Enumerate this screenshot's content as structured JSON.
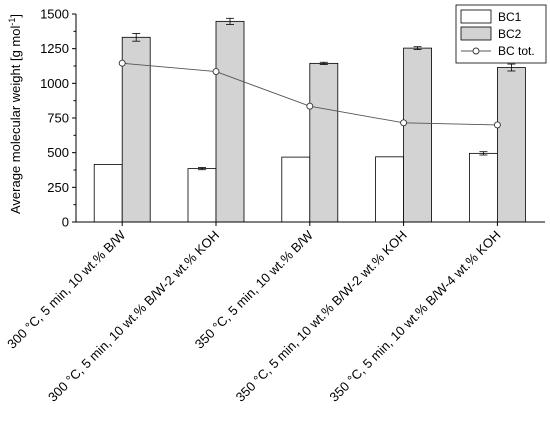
{
  "chart_data": {
    "type": "bar",
    "ylabel": "Average molecular weight [g mol",
    "ylabel_sup": "-1",
    "ylabel_close": "]",
    "ylim": [
      0,
      1500
    ],
    "yticks": [
      0,
      250,
      500,
      750,
      1000,
      1250,
      1500
    ],
    "grid": false,
    "legend_position": "top-right",
    "categories": [
      "300 °C, 5 min, 10 wt.% B/W",
      "300 °C, 5 min, 10 wt.% B/W-2 wt.% KOH",
      "350 °C, 5 min, 10 wt.% B/W",
      "350 °C, 5 min, 10 wt.% B/W-2 wt.% KOH",
      "350 °C, 5 min, 10 wt.% B/W-4 wt.% KOH"
    ],
    "series": [
      {
        "name": "BC1",
        "kind": "bar",
        "color": "#ffffff",
        "values": [
          415,
          385,
          468,
          470,
          495
        ],
        "errors": [
          0,
          8,
          0,
          0,
          12
        ]
      },
      {
        "name": "BC2",
        "kind": "bar",
        "color": "#d3d3d3",
        "values": [
          1332,
          1447,
          1144,
          1254,
          1114
        ],
        "errors": [
          28,
          22,
          8,
          10,
          25
        ]
      },
      {
        "name": "BC tot.",
        "kind": "line",
        "color": "#555555",
        "values": [
          1145,
          1085,
          835,
          715,
          700
        ]
      }
    ]
  }
}
